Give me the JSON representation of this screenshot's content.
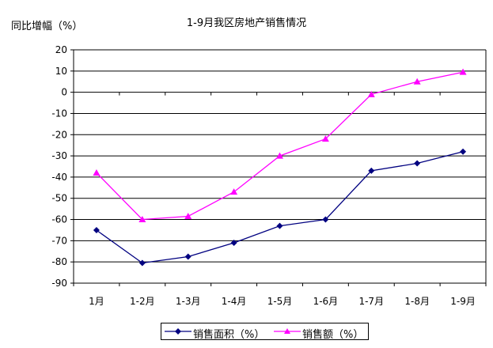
{
  "chart_data": {
    "type": "line",
    "title": "1-9月我区房地产销售情况",
    "ylabel": "同比增幅（%）",
    "xlabel": "",
    "categories": [
      "1月",
      "1-2月",
      "1-3月",
      "1-4月",
      "1-5月",
      "1-6月",
      "1-7月",
      "1-8月",
      "1-9月"
    ],
    "ylim": [
      -90,
      20
    ],
    "yticks": [
      20,
      10,
      0,
      -10,
      -20,
      -30,
      -40,
      -50,
      -60,
      -70,
      -80,
      -90
    ],
    "grid": true,
    "legend_position": "bottom",
    "series": [
      {
        "name": "销售面积（%）",
        "color": "#000080",
        "marker": "diamond",
        "values": [
          -65,
          -80.5,
          -77.5,
          -71,
          -63,
          -60,
          -37,
          -33.5,
          -28
        ]
      },
      {
        "name": "销售额（%）",
        "color": "#ff00ff",
        "marker": "triangle",
        "values": [
          -38,
          -60,
          -58.5,
          -47,
          -30,
          -22,
          -1,
          5,
          9.5
        ]
      }
    ]
  }
}
